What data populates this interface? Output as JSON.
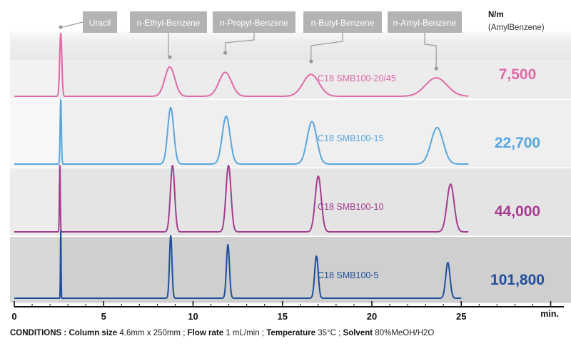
{
  "header": {
    "nm_title": "N/m",
    "nm_subtitle": "(AmylBenzene)"
  },
  "conditions": {
    "lead": "CONDITIONS :",
    "column_label": "Column size",
    "column_value": "4.6mm x 250mm",
    "flow_label": "Flow rate",
    "flow_value": "1 mL/min",
    "temp_label": "Temperature",
    "temp_value": "35°C",
    "solvent_label": "Solvent",
    "solvent_value": "80%MeOH/H2O",
    "sep": ";"
  },
  "chart_data": {
    "type": "line",
    "xlabel": "min.",
    "xlim": [
      0,
      30
    ],
    "xticks": [
      0,
      5,
      10,
      15,
      20,
      25
    ],
    "colors": {
      "pink": "#e06aa9",
      "lightblue": "#58a6dc",
      "magenta": "#a53c8f",
      "darkblue": "#1f4f9c"
    },
    "peak_labels": [
      {
        "label": "Uracil",
        "x": 2.6
      },
      {
        "label": "n-Ethyl-Benzene",
        "x": 8.7
      },
      {
        "label": "n-Propyl-Benzene",
        "x": 11.8
      },
      {
        "label": "n-Butyl-Benzene",
        "x": 16.6
      },
      {
        "label": "n-Amyl-Benzene",
        "x": 23.6
      }
    ],
    "series": [
      {
        "name": "C18 SMB100-20/45",
        "nm": "7,500",
        "color": "#e06aa9",
        "peaks": [
          {
            "x": 2.6,
            "height": 0.92,
            "width": 0.06
          },
          {
            "x": 8.7,
            "height": 0.43,
            "width": 0.28
          },
          {
            "x": 11.8,
            "height": 0.35,
            "width": 0.35
          },
          {
            "x": 16.6,
            "height": 0.32,
            "width": 0.45
          },
          {
            "x": 23.6,
            "height": 0.27,
            "width": 0.6
          }
        ]
      },
      {
        "name": "C18 SMB100-15",
        "nm": "22,700",
        "color": "#58a6dc",
        "peaks": [
          {
            "x": 2.6,
            "height": 0.97,
            "width": 0.035
          },
          {
            "x": 8.75,
            "height": 0.85,
            "width": 0.17
          },
          {
            "x": 11.85,
            "height": 0.72,
            "width": 0.22
          },
          {
            "x": 16.65,
            "height": 0.64,
            "width": 0.27
          },
          {
            "x": 23.65,
            "height": 0.55,
            "width": 0.34
          }
        ]
      },
      {
        "name": "C18 SMB100-10",
        "nm": "44,000",
        "color": "#a53c8f",
        "peaks": [
          {
            "x": 2.55,
            "height": 1.0,
            "width": 0.025
          },
          {
            "x": 8.85,
            "height": 1.0,
            "width": 0.12
          },
          {
            "x": 11.98,
            "height": 1.0,
            "width": 0.14
          },
          {
            "x": 17.0,
            "height": 0.84,
            "width": 0.17
          },
          {
            "x": 24.4,
            "height": 0.72,
            "width": 0.2
          }
        ]
      },
      {
        "name": "C18 SMB100-5",
        "nm": "101,800",
        "color": "#1f4f9c",
        "peaks": [
          {
            "x": 2.6,
            "height": 1.9,
            "width": 0.018
          },
          {
            "x": 8.75,
            "height": 1.75,
            "width": 0.07
          },
          {
            "x": 11.95,
            "height": 1.5,
            "width": 0.085
          },
          {
            "x": 16.9,
            "height": 1.18,
            "width": 0.1
          },
          {
            "x": 24.25,
            "height": 1.0,
            "width": 0.12
          }
        ]
      }
    ]
  }
}
